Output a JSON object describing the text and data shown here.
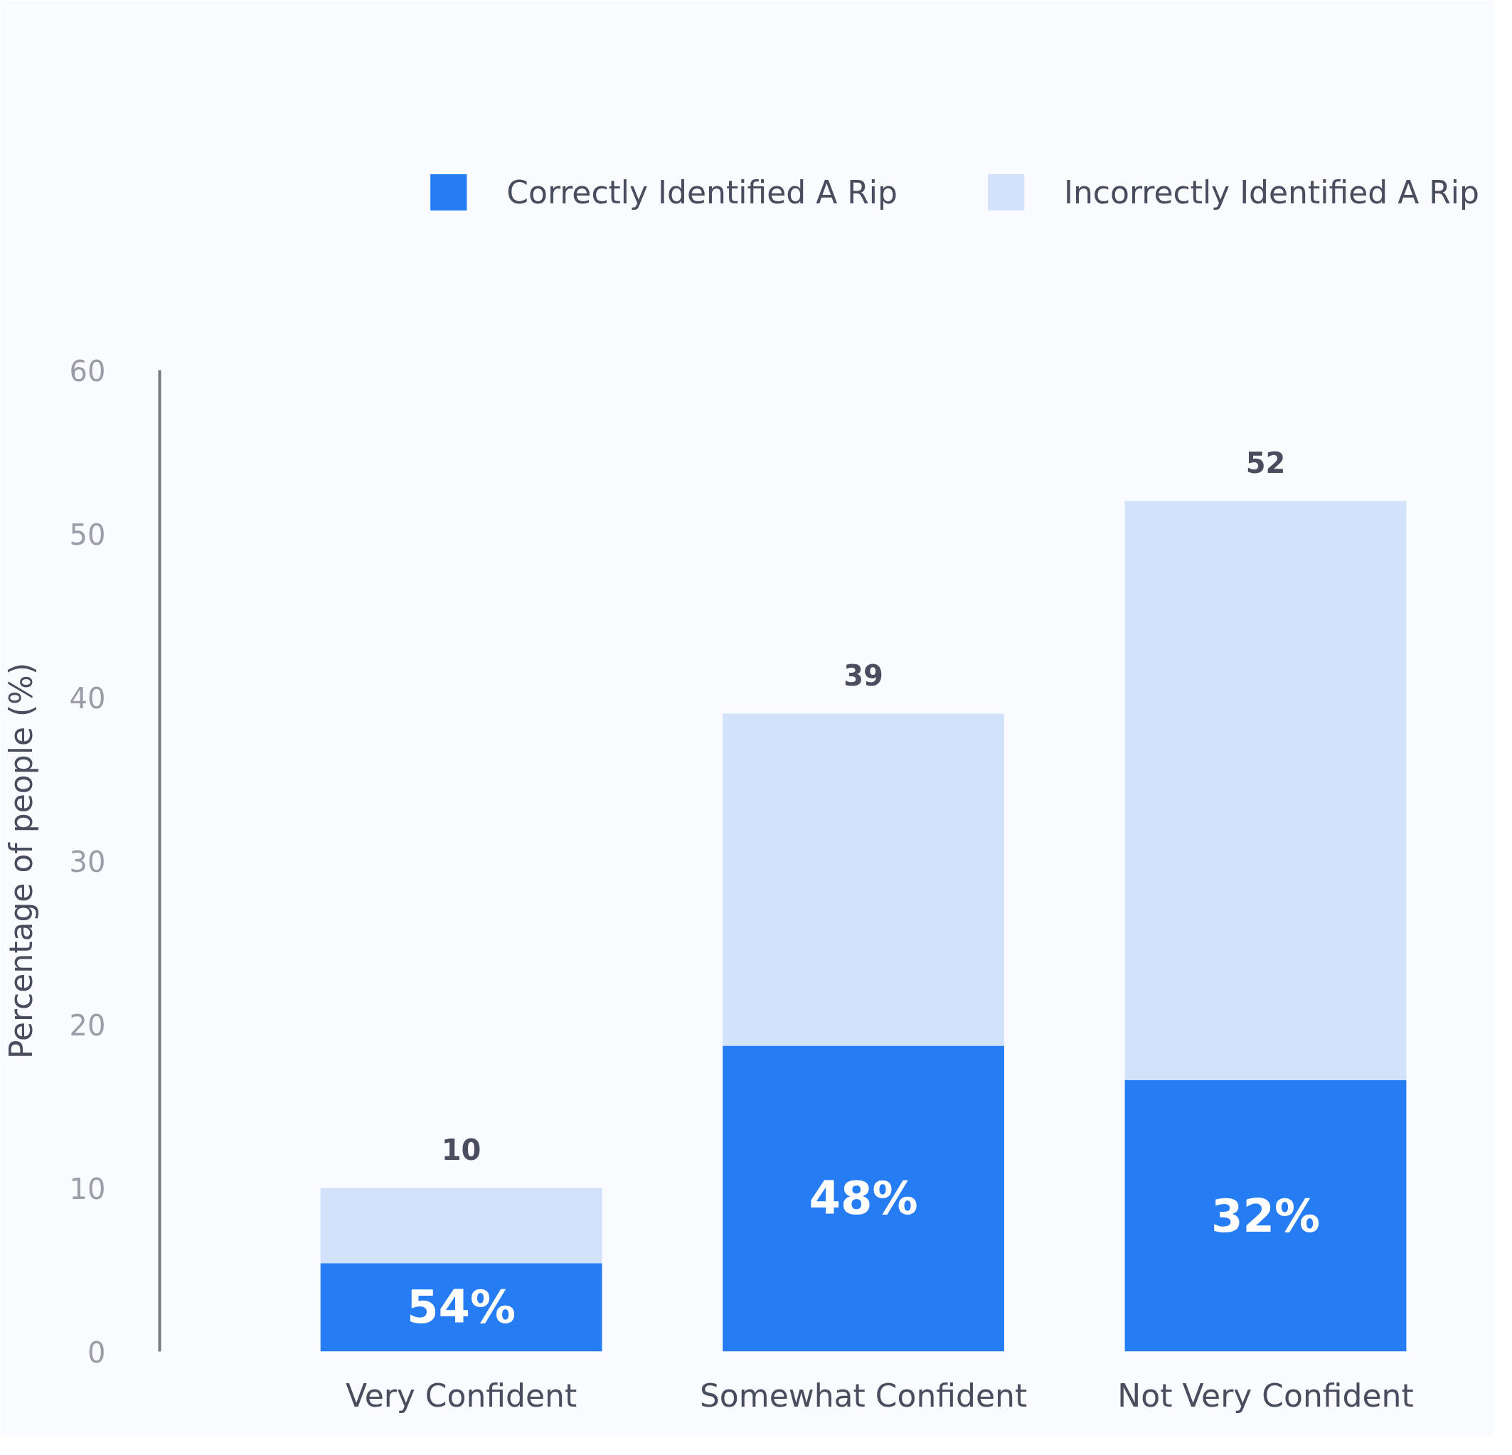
{
  "chart_data": {
    "type": "bar",
    "stacked": true,
    "ylabel": "Percentage of people (%)",
    "categories": [
      "Very Confident",
      "Somewhat Confident",
      "Not Very Confident"
    ],
    "series": [
      {
        "name": "Correctly Identified A Rip",
        "color": "#267cf2",
        "values": [
          5.4,
          18.7,
          16.6
        ]
      },
      {
        "name": "Incorrectly Identified A Rip",
        "color": "#d2e2fb",
        "values": [
          4.6,
          20.3,
          35.4
        ]
      }
    ],
    "totals": [
      "10",
      "39",
      "52"
    ],
    "annotations": [
      "54%",
      "48%",
      "32%"
    ],
    "ylim": [
      0,
      60
    ],
    "yticks": [
      0,
      10,
      20,
      30,
      40,
      50,
      60
    ],
    "grid": false,
    "legend": "top"
  }
}
